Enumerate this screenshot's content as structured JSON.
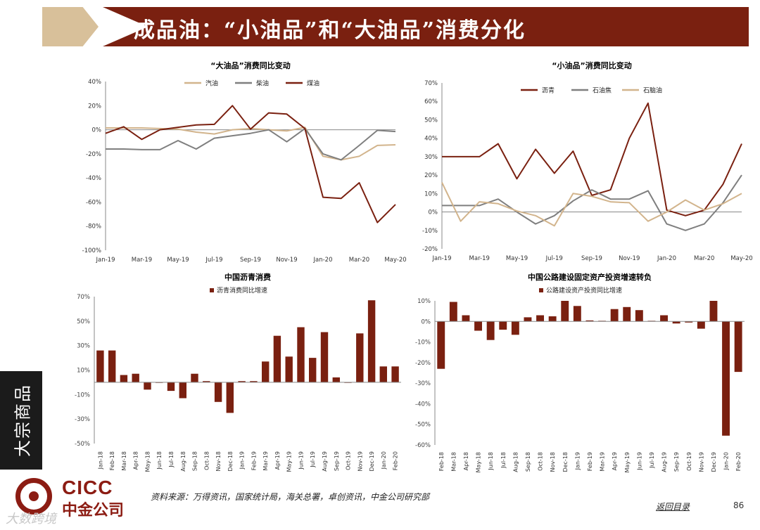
{
  "header": {
    "title": "成品油：“小油品”和“大油品”消费分化"
  },
  "side_tag": "大宗商品",
  "footer": {
    "logo_en": "CICC",
    "logo_cn": "中金公司",
    "source": "资料来源：万得资讯，国家统计局，海关总署，卓创资讯，中金公司研究部",
    "back_link": "返回目录",
    "page": "86",
    "watermark": "大数跨境"
  },
  "colors": {
    "dark_red": "#7a2010",
    "tan": "#d2b48c",
    "gray": "#7f7f7f",
    "axis": "#888888"
  },
  "chart_data": [
    {
      "type": "line",
      "title": "“大油品”消费同比变动",
      "x": [
        "Jan-19",
        "Feb-19",
        "Mar-19",
        "Apr-19",
        "May-19",
        "Jun-19",
        "Jul-19",
        "Aug-19",
        "Sep-19",
        "Oct-19",
        "Nov-19",
        "Dec-19",
        "Jan-20",
        "Feb-20",
        "Mar-20",
        "Apr-20",
        "May-20"
      ],
      "x_ticks": [
        "Jan-19",
        "Mar-19",
        "May-19",
        "Jul-19",
        "Sep-19",
        "Nov-19",
        "Jan-20",
        "Mar-20",
        "May-20"
      ],
      "ylim": [
        -100,
        40
      ],
      "y_ticks": [
        "40%",
        "20%",
        "0%",
        "-20%",
        "-40%",
        "-60%",
        "-80%",
        "-100%"
      ],
      "series": [
        {
          "name": "汽油",
          "color": "#d2b48c",
          "values": [
            1.5,
            1.5,
            1.5,
            1,
            0.5,
            -2,
            -3.5,
            0,
            1,
            0,
            -1,
            2,
            -22,
            -25,
            -22,
            -13,
            -12.5
          ]
        },
        {
          "name": "柴油",
          "color": "#7f7f7f",
          "values": [
            -16,
            -16,
            -16.5,
            -16.5,
            -9,
            -16,
            -7,
            -5,
            -3,
            0,
            -10,
            1,
            -20,
            -25,
            -13,
            -0.5,
            -1.5
          ]
        },
        {
          "name": "煤油",
          "color": "#7a2010",
          "values": [
            -3,
            2.5,
            -8,
            0,
            2,
            4,
            4.5,
            20,
            0.5,
            14,
            13,
            1,
            -56,
            -57,
            -44,
            -77,
            -62
          ]
        }
      ]
    },
    {
      "type": "line",
      "title": "“小油品”消费同比变动",
      "x": [
        "Jan-19",
        "Feb-19",
        "Mar-19",
        "Apr-19",
        "May-19",
        "Jun-19",
        "Jul-19",
        "Aug-19",
        "Sep-19",
        "Oct-19",
        "Nov-19",
        "Dec-19",
        "Jan-20",
        "Feb-20",
        "Mar-20",
        "Apr-20",
        "May-20"
      ],
      "x_ticks": [
        "Jan-19",
        "Mar-19",
        "May-19",
        "Jul-19",
        "Sep-19",
        "Nov-19",
        "Jan-20",
        "Mar-20",
        "May-20"
      ],
      "ylim": [
        -20,
        70
      ],
      "y_ticks": [
        "70%",
        "60%",
        "50%",
        "40%",
        "30%",
        "20%",
        "10%",
        "0%",
        "-10%",
        "-20%"
      ],
      "series": [
        {
          "name": "沥青",
          "color": "#7a2010",
          "values": [
            30,
            30,
            30,
            37,
            18,
            34,
            21,
            33,
            9,
            12,
            40,
            59,
            1,
            -2,
            1,
            15,
            37
          ]
        },
        {
          "name": "石油焦",
          "color": "#7f7f7f",
          "values": [
            3.5,
            3.5,
            3.5,
            7,
            0,
            -6.5,
            -2,
            6,
            12,
            7,
            7,
            11.5,
            -6.5,
            -10,
            -6.5,
            5,
            20
          ]
        },
        {
          "name": "石脑油",
          "color": "#d2b48c",
          "values": [
            16,
            -5,
            5.5,
            4.5,
            0.5,
            -2,
            -7.5,
            10,
            8.5,
            5.5,
            5,
            -5,
            0,
            6.5,
            1,
            4.5,
            10
          ]
        }
      ]
    },
    {
      "type": "bar",
      "title": "中国沥青消费",
      "legend": "沥青消费同比增速",
      "categories": [
        "Jan-18",
        "Feb-18",
        "Mar-18",
        "Apr-18",
        "May-18",
        "Jun-18",
        "Jul-18",
        "Aug-18",
        "Sep-18",
        "Oct-18",
        "Nov-18",
        "Dec-18",
        "Jan-19",
        "Feb-19",
        "Mar-19",
        "Apr-19",
        "May-19",
        "Jun-19",
        "Jul-19",
        "Aug-19",
        "Sep-19",
        "Oct-19",
        "Nov-19",
        "Dec-19",
        "Jan-20",
        "Feb-20"
      ],
      "values": [
        26,
        26,
        6,
        7,
        -6,
        0,
        -7,
        -13,
        7,
        1,
        -16,
        -25,
        1,
        1,
        17,
        38,
        21,
        45,
        20,
        41,
        4,
        0,
        40,
        67,
        13,
        13
      ],
      "ylim": [
        -50,
        70
      ],
      "y_ticks": [
        "70%",
        "50%",
        "30%",
        "10%",
        "-10%",
        "-30%",
        "-50%"
      ]
    },
    {
      "type": "bar",
      "title": "中国公路建设固定资产投资增速转负",
      "legend": "公路建设资产投资同比增速",
      "categories": [
        "Feb-18",
        "Mar-18",
        "Apr-18",
        "May-18",
        "Jun-18",
        "Jul-18",
        "Aug-18",
        "Sep-18",
        "Oct-18",
        "Nov-18",
        "Dec-18",
        "Jan-19",
        "Feb-19",
        "Mar-19",
        "Apr-19",
        "May-19",
        "Jun-19",
        "Jul-19",
        "Aug-19",
        "Sep-19",
        "Oct-19",
        "Nov-19",
        "Dec-19",
        "Jan-20",
        "Feb-20"
      ],
      "values": [
        -23,
        9.5,
        3,
        -4.5,
        -9,
        -4,
        -6.5,
        2,
        3,
        2.5,
        10,
        7.5,
        0.5,
        0.3,
        6,
        7,
        5.5,
        0.3,
        3,
        -1,
        -0.5,
        -3.5,
        10,
        -55.5,
        -24.5
      ],
      "ylim": [
        -60,
        10
      ],
      "y_ticks": [
        "10%",
        "0%",
        "-10%",
        "-20%",
        "-30%",
        "-40%",
        "-50%",
        "-60%"
      ]
    }
  ]
}
